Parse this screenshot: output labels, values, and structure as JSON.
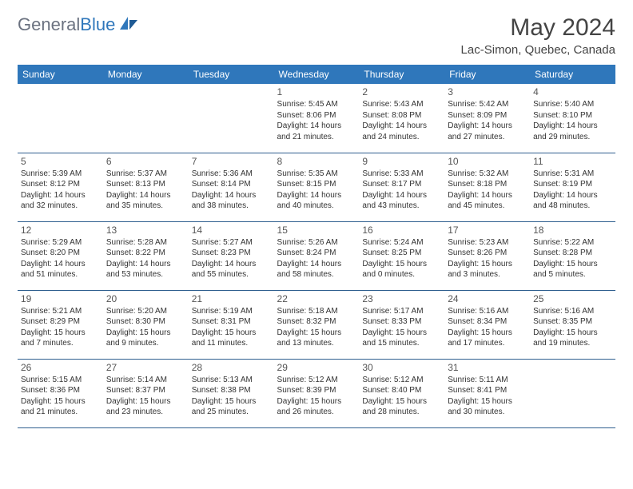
{
  "brand": {
    "name_part1": "General",
    "name_part2": "Blue"
  },
  "title": "May 2024",
  "location": "Lac-Simon, Quebec, Canada",
  "colors": {
    "header_bg": "#2f77bb",
    "header_text": "#ffffff",
    "cell_border": "#2f5f8f",
    "logo_gray": "#6b7280",
    "logo_blue": "#2f77bb"
  },
  "day_names": [
    "Sunday",
    "Monday",
    "Tuesday",
    "Wednesday",
    "Thursday",
    "Friday",
    "Saturday"
  ],
  "leading_blanks": 3,
  "days": [
    {
      "n": "1",
      "sunrise": "Sunrise: 5:45 AM",
      "sunset": "Sunset: 8:06 PM",
      "day1": "Daylight: 14 hours",
      "day2": "and 21 minutes."
    },
    {
      "n": "2",
      "sunrise": "Sunrise: 5:43 AM",
      "sunset": "Sunset: 8:08 PM",
      "day1": "Daylight: 14 hours",
      "day2": "and 24 minutes."
    },
    {
      "n": "3",
      "sunrise": "Sunrise: 5:42 AM",
      "sunset": "Sunset: 8:09 PM",
      "day1": "Daylight: 14 hours",
      "day2": "and 27 minutes."
    },
    {
      "n": "4",
      "sunrise": "Sunrise: 5:40 AM",
      "sunset": "Sunset: 8:10 PM",
      "day1": "Daylight: 14 hours",
      "day2": "and 29 minutes."
    },
    {
      "n": "5",
      "sunrise": "Sunrise: 5:39 AM",
      "sunset": "Sunset: 8:12 PM",
      "day1": "Daylight: 14 hours",
      "day2": "and 32 minutes."
    },
    {
      "n": "6",
      "sunrise": "Sunrise: 5:37 AM",
      "sunset": "Sunset: 8:13 PM",
      "day1": "Daylight: 14 hours",
      "day2": "and 35 minutes."
    },
    {
      "n": "7",
      "sunrise": "Sunrise: 5:36 AM",
      "sunset": "Sunset: 8:14 PM",
      "day1": "Daylight: 14 hours",
      "day2": "and 38 minutes."
    },
    {
      "n": "8",
      "sunrise": "Sunrise: 5:35 AM",
      "sunset": "Sunset: 8:15 PM",
      "day1": "Daylight: 14 hours",
      "day2": "and 40 minutes."
    },
    {
      "n": "9",
      "sunrise": "Sunrise: 5:33 AM",
      "sunset": "Sunset: 8:17 PM",
      "day1": "Daylight: 14 hours",
      "day2": "and 43 minutes."
    },
    {
      "n": "10",
      "sunrise": "Sunrise: 5:32 AM",
      "sunset": "Sunset: 8:18 PM",
      "day1": "Daylight: 14 hours",
      "day2": "and 45 minutes."
    },
    {
      "n": "11",
      "sunrise": "Sunrise: 5:31 AM",
      "sunset": "Sunset: 8:19 PM",
      "day1": "Daylight: 14 hours",
      "day2": "and 48 minutes."
    },
    {
      "n": "12",
      "sunrise": "Sunrise: 5:29 AM",
      "sunset": "Sunset: 8:20 PM",
      "day1": "Daylight: 14 hours",
      "day2": "and 51 minutes."
    },
    {
      "n": "13",
      "sunrise": "Sunrise: 5:28 AM",
      "sunset": "Sunset: 8:22 PM",
      "day1": "Daylight: 14 hours",
      "day2": "and 53 minutes."
    },
    {
      "n": "14",
      "sunrise": "Sunrise: 5:27 AM",
      "sunset": "Sunset: 8:23 PM",
      "day1": "Daylight: 14 hours",
      "day2": "and 55 minutes."
    },
    {
      "n": "15",
      "sunrise": "Sunrise: 5:26 AM",
      "sunset": "Sunset: 8:24 PM",
      "day1": "Daylight: 14 hours",
      "day2": "and 58 minutes."
    },
    {
      "n": "16",
      "sunrise": "Sunrise: 5:24 AM",
      "sunset": "Sunset: 8:25 PM",
      "day1": "Daylight: 15 hours",
      "day2": "and 0 minutes."
    },
    {
      "n": "17",
      "sunrise": "Sunrise: 5:23 AM",
      "sunset": "Sunset: 8:26 PM",
      "day1": "Daylight: 15 hours",
      "day2": "and 3 minutes."
    },
    {
      "n": "18",
      "sunrise": "Sunrise: 5:22 AM",
      "sunset": "Sunset: 8:28 PM",
      "day1": "Daylight: 15 hours",
      "day2": "and 5 minutes."
    },
    {
      "n": "19",
      "sunrise": "Sunrise: 5:21 AM",
      "sunset": "Sunset: 8:29 PM",
      "day1": "Daylight: 15 hours",
      "day2": "and 7 minutes."
    },
    {
      "n": "20",
      "sunrise": "Sunrise: 5:20 AM",
      "sunset": "Sunset: 8:30 PM",
      "day1": "Daylight: 15 hours",
      "day2": "and 9 minutes."
    },
    {
      "n": "21",
      "sunrise": "Sunrise: 5:19 AM",
      "sunset": "Sunset: 8:31 PM",
      "day1": "Daylight: 15 hours",
      "day2": "and 11 minutes."
    },
    {
      "n": "22",
      "sunrise": "Sunrise: 5:18 AM",
      "sunset": "Sunset: 8:32 PM",
      "day1": "Daylight: 15 hours",
      "day2": "and 13 minutes."
    },
    {
      "n": "23",
      "sunrise": "Sunrise: 5:17 AM",
      "sunset": "Sunset: 8:33 PM",
      "day1": "Daylight: 15 hours",
      "day2": "and 15 minutes."
    },
    {
      "n": "24",
      "sunrise": "Sunrise: 5:16 AM",
      "sunset": "Sunset: 8:34 PM",
      "day1": "Daylight: 15 hours",
      "day2": "and 17 minutes."
    },
    {
      "n": "25",
      "sunrise": "Sunrise: 5:16 AM",
      "sunset": "Sunset: 8:35 PM",
      "day1": "Daylight: 15 hours",
      "day2": "and 19 minutes."
    },
    {
      "n": "26",
      "sunrise": "Sunrise: 5:15 AM",
      "sunset": "Sunset: 8:36 PM",
      "day1": "Daylight: 15 hours",
      "day2": "and 21 minutes."
    },
    {
      "n": "27",
      "sunrise": "Sunrise: 5:14 AM",
      "sunset": "Sunset: 8:37 PM",
      "day1": "Daylight: 15 hours",
      "day2": "and 23 minutes."
    },
    {
      "n": "28",
      "sunrise": "Sunrise: 5:13 AM",
      "sunset": "Sunset: 8:38 PM",
      "day1": "Daylight: 15 hours",
      "day2": "and 25 minutes."
    },
    {
      "n": "29",
      "sunrise": "Sunrise: 5:12 AM",
      "sunset": "Sunset: 8:39 PM",
      "day1": "Daylight: 15 hours",
      "day2": "and 26 minutes."
    },
    {
      "n": "30",
      "sunrise": "Sunrise: 5:12 AM",
      "sunset": "Sunset: 8:40 PM",
      "day1": "Daylight: 15 hours",
      "day2": "and 28 minutes."
    },
    {
      "n": "31",
      "sunrise": "Sunrise: 5:11 AM",
      "sunset": "Sunset: 8:41 PM",
      "day1": "Daylight: 15 hours",
      "day2": "and 30 minutes."
    }
  ]
}
